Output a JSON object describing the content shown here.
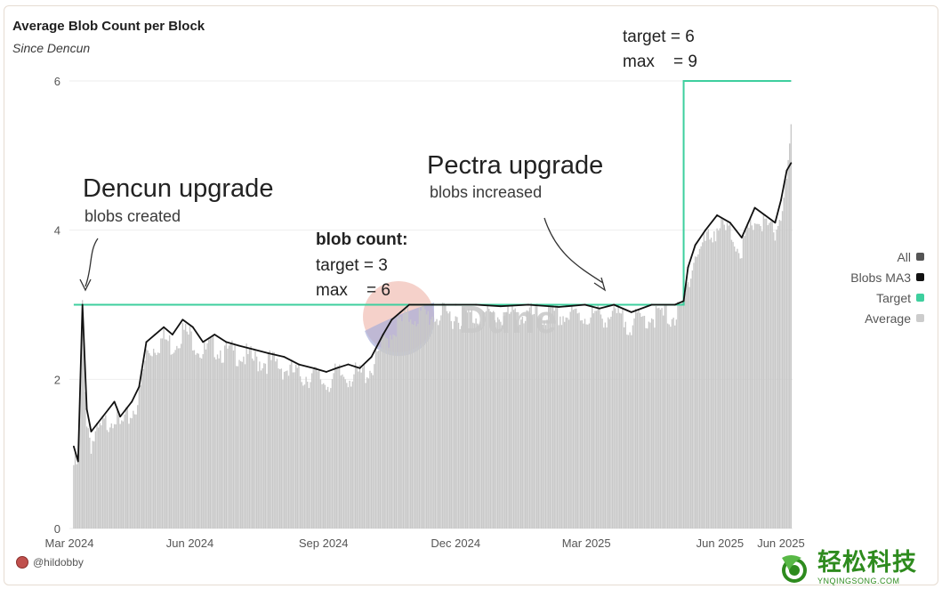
{
  "header": {
    "title": "Average Blob Count per Block",
    "subtitle": "Since Dencun"
  },
  "annotations": {
    "dencun_title": "Dencun upgrade",
    "dencun_sub": "blobs created",
    "pectra_title": "Pectra upgrade",
    "pectra_sub": "blobs increased",
    "blob_count_label": "blob count:",
    "old_target": "target = 3",
    "old_max": "max    = 6",
    "new_target": "target = 6",
    "new_max": "max    = 9"
  },
  "credit": "@hildobby",
  "watermark": "Dune",
  "brand": {
    "cn": "轻松科技",
    "en": "YNQINGSONG.COM"
  },
  "colors": {
    "bars": "#c8c8c8",
    "ma3": "#111111",
    "target": "#3ecf9e",
    "gridline": "#eeeeee"
  },
  "chart_data": {
    "type": "bar",
    "ylim": [
      0,
      6
    ],
    "yticks": [
      0,
      2,
      4,
      6
    ],
    "xtick_labels": [
      "Mar 2024",
      "Jun 2024",
      "Sep 2024",
      "Dec 2024",
      "Mar 2025",
      "Jun 2025",
      "Jun 2025"
    ],
    "legend": [
      {
        "name": "All",
        "color": "#555555"
      },
      {
        "name": "Blobs MA3",
        "color": "#111111"
      },
      {
        "name": "Target",
        "color": "#3ecf9e"
      },
      {
        "name": "Average",
        "color": "#cccccc"
      }
    ],
    "legend_position": "right",
    "target": [
      {
        "from": "2024-03-13",
        "to": "2025-05-07",
        "value": 3
      },
      {
        "from": "2025-05-07",
        "to": "2025-07-20",
        "value": 6
      }
    ],
    "series": [
      {
        "name": "Blobs MA3",
        "x": [
          "2024-03-13",
          "2024-03-16",
          "2024-03-19",
          "2024-03-22",
          "2024-03-25",
          "2024-03-29",
          "2024-04-02",
          "2024-04-06",
          "2024-04-10",
          "2024-04-14",
          "2024-04-18",
          "2024-04-22",
          "2024-04-27",
          "2024-05-02",
          "2024-05-08",
          "2024-05-14",
          "2024-05-20",
          "2024-05-27",
          "2024-06-03",
          "2024-06-10",
          "2024-06-18",
          "2024-06-26",
          "2024-07-05",
          "2024-07-15",
          "2024-07-25",
          "2024-08-05",
          "2024-08-15",
          "2024-08-25",
          "2024-09-03",
          "2024-09-10",
          "2024-09-18",
          "2024-09-26",
          "2024-10-04",
          "2024-10-12",
          "2024-10-18",
          "2024-10-24",
          "2024-10-30",
          "2024-11-15",
          "2024-12-01",
          "2024-12-15",
          "2025-01-01",
          "2025-01-20",
          "2025-02-10",
          "2025-02-28",
          "2025-03-10",
          "2025-03-20",
          "2025-04-01",
          "2025-04-15",
          "2025-05-01",
          "2025-05-07",
          "2025-05-10",
          "2025-05-15",
          "2025-05-22",
          "2025-05-30",
          "2025-06-08",
          "2025-06-16",
          "2025-06-25",
          "2025-07-02",
          "2025-07-09",
          "2025-07-13",
          "2025-07-17",
          "2025-07-20"
        ],
        "values": [
          1.1,
          0.9,
          3.0,
          1.6,
          1.3,
          1.4,
          1.5,
          1.6,
          1.7,
          1.5,
          1.6,
          1.7,
          1.9,
          2.5,
          2.6,
          2.7,
          2.6,
          2.8,
          2.7,
          2.5,
          2.6,
          2.5,
          2.45,
          2.4,
          2.35,
          2.3,
          2.2,
          2.15,
          2.1,
          2.15,
          2.2,
          2.15,
          2.3,
          2.6,
          2.8,
          2.9,
          3.0,
          3.0,
          3.0,
          3.0,
          2.98,
          3.0,
          2.97,
          3.0,
          2.95,
          3.0,
          2.9,
          3.0,
          3.0,
          3.05,
          3.5,
          3.8,
          4.0,
          4.2,
          4.1,
          3.9,
          4.3,
          4.2,
          4.1,
          4.4,
          4.8,
          4.9
        ]
      },
      {
        "name": "Average",
        "x": [
          "2024-03-13",
          "2024-03-16",
          "2024-03-19",
          "2024-03-22",
          "2024-03-25",
          "2024-03-29",
          "2024-04-02",
          "2024-04-06",
          "2024-04-10",
          "2024-04-14",
          "2024-04-18",
          "2024-04-22",
          "2024-04-27",
          "2024-05-02",
          "2024-05-08",
          "2024-05-14",
          "2024-05-20",
          "2024-05-27",
          "2024-06-03",
          "2024-06-10",
          "2024-06-18",
          "2024-06-26",
          "2024-07-05",
          "2024-07-15",
          "2024-07-25",
          "2024-08-05",
          "2024-08-15",
          "2024-08-25",
          "2024-09-03",
          "2024-09-10",
          "2024-09-18",
          "2024-09-26",
          "2024-10-04",
          "2024-10-12",
          "2024-10-18",
          "2024-10-24",
          "2024-10-30",
          "2024-11-15",
          "2024-12-01",
          "2024-12-15",
          "2025-01-01",
          "2025-01-20",
          "2025-02-10",
          "2025-02-28",
          "2025-03-10",
          "2025-03-20",
          "2025-04-01",
          "2025-04-15",
          "2025-05-01",
          "2025-05-07",
          "2025-05-10",
          "2025-05-15",
          "2025-05-22",
          "2025-05-30",
          "2025-06-08",
          "2025-06-16",
          "2025-06-25",
          "2025-07-02",
          "2025-07-09",
          "2025-07-13",
          "2025-07-17",
          "2025-07-20"
        ],
        "values": [
          0.9,
          0.9,
          3.0,
          1.5,
          1.2,
          1.3,
          1.4,
          1.5,
          1.6,
          1.4,
          1.5,
          1.6,
          1.8,
          2.4,
          2.5,
          2.6,
          2.5,
          2.7,
          2.6,
          2.4,
          2.5,
          2.4,
          2.4,
          2.3,
          2.3,
          2.2,
          2.1,
          2.1,
          2.0,
          2.1,
          2.1,
          2.1,
          2.2,
          2.5,
          2.7,
          2.8,
          2.9,
          2.9,
          2.9,
          2.9,
          2.9,
          2.9,
          2.9,
          2.9,
          2.9,
          2.9,
          2.8,
          2.9,
          2.9,
          3.0,
          3.4,
          3.7,
          3.9,
          4.1,
          4.0,
          3.8,
          4.2,
          4.1,
          4.0,
          4.3,
          4.7,
          5.3
        ]
      }
    ]
  }
}
